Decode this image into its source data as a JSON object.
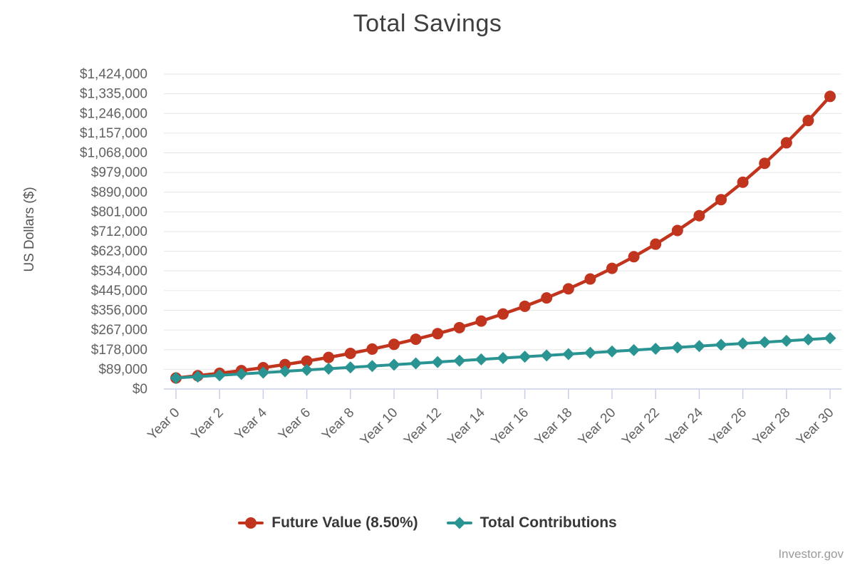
{
  "page": {
    "title": "Total Savings",
    "attribution": "Investor.gov"
  },
  "chart_data": {
    "type": "line",
    "title": "Total Savings",
    "xlabel": "",
    "ylabel": "US Dollars ($)",
    "grid": "horizontal",
    "legend_position": "bottom",
    "ylim": [
      0,
      1424000
    ],
    "y_ticks": [
      0,
      89000,
      178000,
      267000,
      356000,
      445000,
      534000,
      623000,
      712000,
      801000,
      890000,
      979000,
      1068000,
      1157000,
      1246000,
      1335000,
      1424000
    ],
    "y_tick_labels": [
      "$0",
      "$89,000",
      "$178,000",
      "$267,000",
      "$356,000",
      "$445,000",
      "$534,000",
      "$623,000",
      "$712,000",
      "$801,000",
      "$890,000",
      "$979,000",
      "$1,068,000",
      "$1,157,000",
      "$1,246,000",
      "$1,335,000",
      "$1,424,000"
    ],
    "x_years": [
      0,
      1,
      2,
      3,
      4,
      5,
      6,
      7,
      8,
      9,
      10,
      11,
      12,
      13,
      14,
      15,
      16,
      17,
      18,
      19,
      20,
      21,
      22,
      23,
      24,
      25,
      26,
      27,
      28,
      29,
      30
    ],
    "x_tick_years": [
      0,
      2,
      4,
      6,
      8,
      10,
      12,
      14,
      16,
      18,
      20,
      22,
      24,
      26,
      28,
      30
    ],
    "x_tick_labels": [
      "Year 0",
      "Year 2",
      "Year 4",
      "Year 6",
      "Year 8",
      "Year 10",
      "Year 12",
      "Year 14",
      "Year 16",
      "Year 18",
      "Year 20",
      "Year 22",
      "Year 24",
      "Year 26",
      "Year 28",
      "Year 30"
    ],
    "colors": {
      "grid": "#e6e6e6",
      "axis": "#c7cde8",
      "tick_text": "#616161",
      "title_text": "#3f3f3f"
    },
    "series": [
      {
        "name": "Future Value (8.50%)",
        "color": "#c1341e",
        "marker": "circle",
        "line_width": 4.5,
        "values": [
          50000,
          60250,
          71371,
          83438,
          96530,
          110735,
          126147,
          142870,
          161013,
          180700,
          202059,
          225234,
          250379,
          277661,
          307262,
          339380,
          374227,
          412036,
          453059,
          497569,
          545863,
          598260,
          655112,
          716798,
          783725,
          856340,
          935129,
          1020617,
          1113369,
          1214006,
          1323199
        ]
      },
      {
        "name": "Total Contributions",
        "color": "#2a9492",
        "marker": "diamond",
        "line_width": 4,
        "values": [
          50000,
          56000,
          62000,
          68000,
          74000,
          80000,
          86000,
          92000,
          98000,
          104000,
          110000,
          116000,
          122000,
          128000,
          134000,
          140000,
          146000,
          152000,
          158000,
          164000,
          170000,
          176000,
          182000,
          188000,
          194000,
          200000,
          206000,
          212000,
          218000,
          224000,
          230000
        ]
      }
    ]
  }
}
